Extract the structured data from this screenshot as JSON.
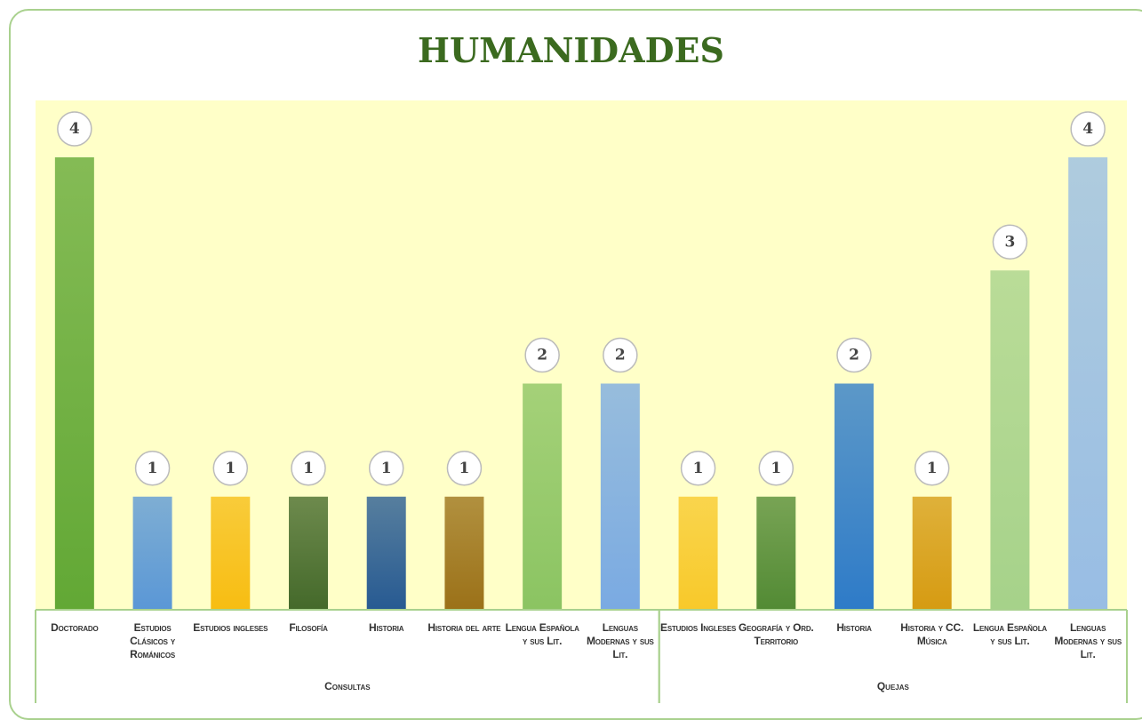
{
  "chart_data": {
    "type": "bar",
    "title": "HUMANIDADES",
    "groups": [
      {
        "name": "Consultas",
        "categories": [
          "Doctorado",
          "Estudios Clásicos y Románicos",
          "Estudios ingleses",
          "Filosofía",
          "Historia",
          "Historia del arte",
          "Lengua Española y sus Lit.",
          "Lenguas Modernas y sus Lit."
        ],
        "values": [
          4,
          1,
          1,
          1,
          1,
          1,
          2,
          2
        ],
        "colors": [
          "#62a835",
          "#5a97d6",
          "#f7bd12",
          "#44692a",
          "#275a92",
          "#9b7118",
          "#8bc462",
          "#7aaae2"
        ]
      },
      {
        "name": "Quejas",
        "categories": [
          "Estudios Ingleses",
          "Geografía y Ord. Territorio",
          "Historia",
          "Historia y CC. Música",
          "Lengua Española y sus Lit.",
          "Lenguas Modernas y sus Lit."
        ],
        "values": [
          1,
          1,
          2,
          1,
          3,
          4
        ],
        "colors": [
          "#f8c92a",
          "#528a34",
          "#2e7bc8",
          "#d69b12",
          "#a6d28a",
          "#98bde4"
        ]
      }
    ]
  }
}
